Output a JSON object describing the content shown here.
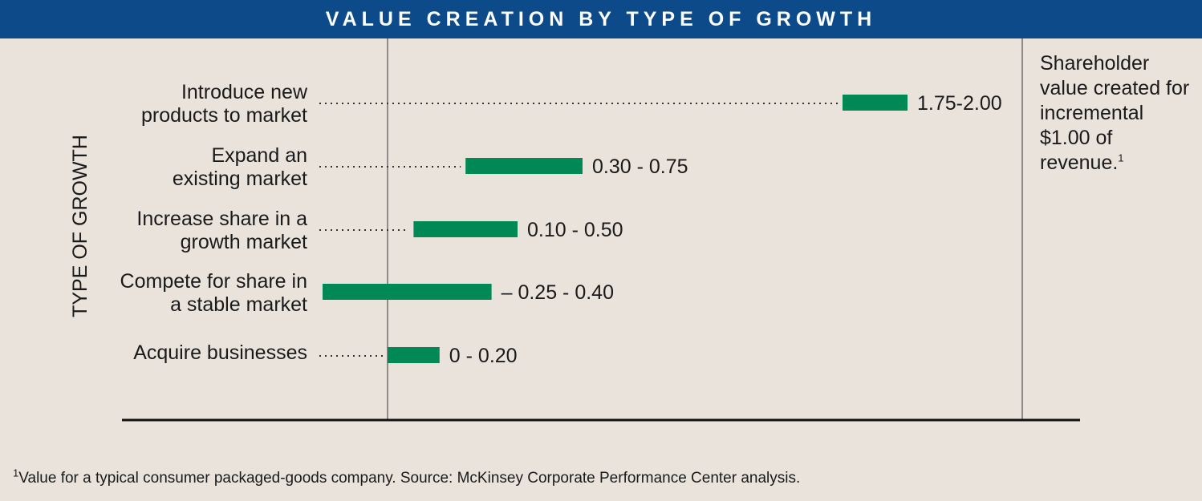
{
  "title": "VALUE CREATION BY TYPE OF GROWTH",
  "colors": {
    "header": "#0d4a8a",
    "bar": "#008855",
    "background": "#e9e3dc"
  },
  "side_note": {
    "text": "Shareholder value created for incremental $1.00 of revenue.",
    "superscript": "1"
  },
  "footnote": {
    "marker": "1",
    "text": "Value for a typical consumer packaged-goods company.  Source: McKinsey Corporate Performance Center analysis."
  },
  "chart_data": {
    "type": "bar",
    "orientation": "horizontal-range",
    "ylabel": "TYPE OF GROWTH",
    "xlim": [
      -0.25,
      2.0
    ],
    "zero_line": true,
    "categories": [
      [
        "Introduce new",
        "products to market"
      ],
      [
        "Expand an",
        "existing market"
      ],
      [
        "Increase share in a",
        "growth market"
      ],
      [
        "Compete for share in",
        "a stable market"
      ],
      [
        "Acquire businesses"
      ]
    ],
    "ranges": [
      [
        1.75,
        2.0
      ],
      [
        0.3,
        0.75
      ],
      [
        0.1,
        0.5
      ],
      [
        -0.25,
        0.4
      ],
      [
        0,
        0.2
      ]
    ],
    "value_labels": [
      "1.75-2.00",
      "0.30 - 0.75",
      "0.10 - 0.50",
      "– 0.25 - 0.40",
      "0 - 0.20"
    ]
  }
}
